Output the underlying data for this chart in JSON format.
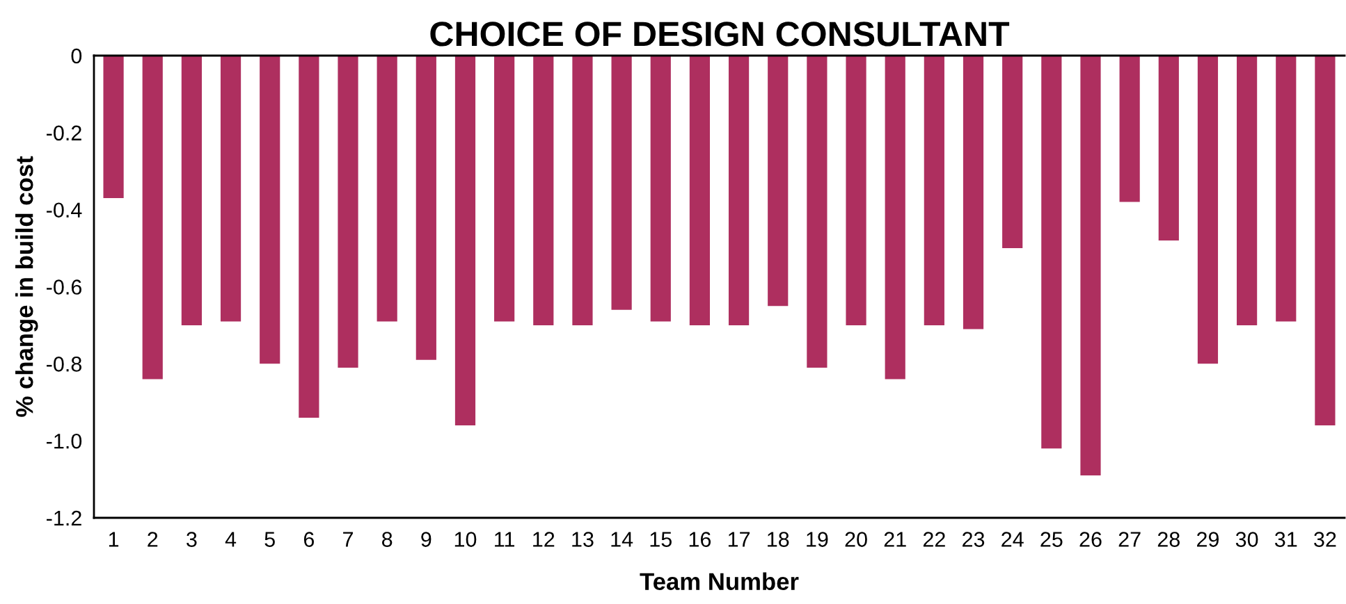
{
  "chart_data": {
    "type": "bar",
    "title": "CHOICE OF DESIGN CONSULTANT",
    "xlabel": "Team Number",
    "ylabel": "% change in build cost",
    "categories": [
      "1",
      "2",
      "3",
      "4",
      "5",
      "6",
      "7",
      "8",
      "9",
      "10",
      "11",
      "12",
      "13",
      "14",
      "15",
      "16",
      "17",
      "18",
      "19",
      "20",
      "21",
      "22",
      "23",
      "24",
      "25",
      "26",
      "27",
      "28",
      "29",
      "30",
      "31",
      "32"
    ],
    "values": [
      -0.37,
      -0.84,
      -0.7,
      -0.69,
      -0.8,
      -0.94,
      -0.81,
      -0.69,
      -0.79,
      -0.96,
      -0.69,
      -0.7,
      -0.7,
      -0.66,
      -0.69,
      -0.7,
      -0.7,
      -0.65,
      -0.81,
      -0.7,
      -0.84,
      -0.7,
      -0.71,
      -0.5,
      -1.02,
      -1.09,
      -0.38,
      -0.48,
      -0.8,
      -0.7,
      -0.69,
      -0.96
    ],
    "color": "#ae2f5f",
    "ylim": [
      -1.2,
      0
    ],
    "yticks": [
      0,
      -0.2,
      -0.4,
      -0.6,
      -0.8,
      {
        "value": -1,
        "label": "-1.0"
      },
      -1.2
    ]
  }
}
